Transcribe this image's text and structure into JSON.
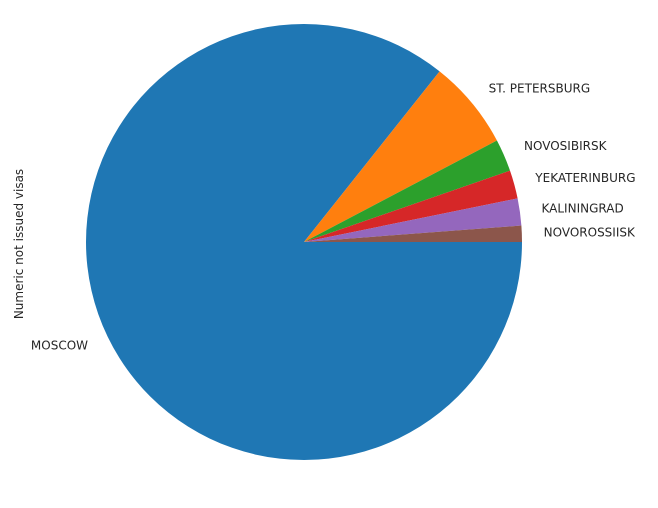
{
  "chart_data": {
    "type": "pie",
    "ylabel": "Numeric not issued visas",
    "series": [
      {
        "labels": [
          "MOSCOW",
          "ST. PETERSBURG",
          "NOVOSIBIRSK",
          "YEKATERINBURG",
          "KALININGRAD",
          "NOVOROSSIISK"
        ],
        "values": [
          85.6,
          6.6,
          2.4,
          2.1,
          2.0,
          1.2
        ],
        "colors": [
          "#1f77b4",
          "#ff7f0e",
          "#2ca02c",
          "#d62728",
          "#9467bd",
          "#8c564b"
        ]
      }
    ],
    "start_angle_deg": 0,
    "direction": "clockwise",
    "legend": "none"
  }
}
